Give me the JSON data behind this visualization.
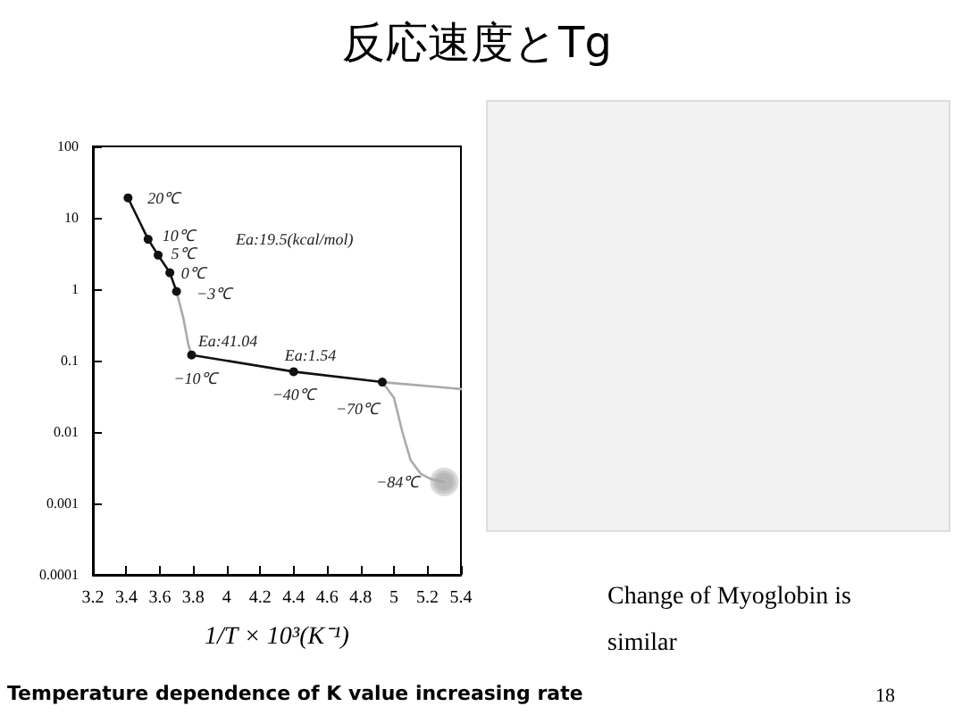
{
  "chart_data": {
    "type": "line",
    "title": "反応速度とTg",
    "xlabel": "1/T × 10³(K⁻¹)",
    "log": "y",
    "grid": false,
    "xlim": [
      3.2,
      5.4
    ],
    "xticks": [
      3.2,
      3.4,
      3.6,
      3.8,
      4.0,
      4.2,
      4.4,
      4.6,
      4.8,
      5.0,
      5.2,
      5.4
    ],
    "ylim": [
      0.0001,
      100
    ],
    "yticks": [
      0.0001,
      0.001,
      0.01,
      0.1,
      1,
      10,
      100
    ],
    "series": [
      {
        "color": "#111111",
        "marker": "circle",
        "x": [
          3.41,
          3.53,
          3.59,
          3.66,
          3.7
        ],
        "values": [
          19,
          5,
          3,
          1.7,
          0.93
        ]
      },
      {
        "color": "#111111",
        "marker": "circle",
        "x": [
          3.79,
          4.4,
          4.93
        ],
        "values": [
          0.12,
          0.07,
          0.05
        ]
      },
      {
        "color": "#aaaaaa",
        "marker": "none",
        "x": [
          3.7,
          3.74,
          3.77,
          3.79
        ],
        "values": [
          0.93,
          0.4,
          0.17,
          0.12
        ]
      },
      {
        "color": "#aaaaaa",
        "marker": "none",
        "x": [
          4.93,
          5.0,
          5.05,
          5.1,
          5.16,
          5.22,
          5.3
        ],
        "values": [
          0.05,
          0.03,
          0.01,
          0.004,
          0.0026,
          0.0022,
          0.002
        ]
      },
      {
        "color": "#aaaaaa",
        "marker": "none",
        "x": [
          4.93,
          5.4
        ],
        "values": [
          0.05,
          0.04
        ]
      },
      {
        "type": "scatter",
        "color": "#999999",
        "marker": "circle",
        "x": [
          5.3
        ],
        "values": [
          0.002
        ]
      }
    ],
    "annotations": [
      {
        "text": "20℃",
        "x": 3.41,
        "y": 19
      },
      {
        "text": "10℃",
        "x": 3.53,
        "y": 5
      },
      {
        "text": "5℃",
        "x": 3.59,
        "y": 3
      },
      {
        "text": "0℃",
        "x": 3.66,
        "y": 1.7
      },
      {
        "text": "−3℃",
        "x": 3.7,
        "y": 0.93
      },
      {
        "text": "−10℃",
        "x": 3.79,
        "y": 0.12
      },
      {
        "text": "−40℃",
        "x": 4.4,
        "y": 0.07
      },
      {
        "text": "−70℃",
        "x": 4.93,
        "y": 0.05
      },
      {
        "text": "−84℃",
        "x": 5.3,
        "y": 0.002
      },
      {
        "text": "Ea:41.04",
        "x": 3.74,
        "y": 0.4
      },
      {
        "text": "Ea:1.54",
        "x": 4.66,
        "y": 0.06
      },
      "Ea:19.5(kcal/mol)",
      "Change of Myoglobin is similar",
      "Temperature dependence of K value increasing rate",
      "18"
    ]
  }
}
